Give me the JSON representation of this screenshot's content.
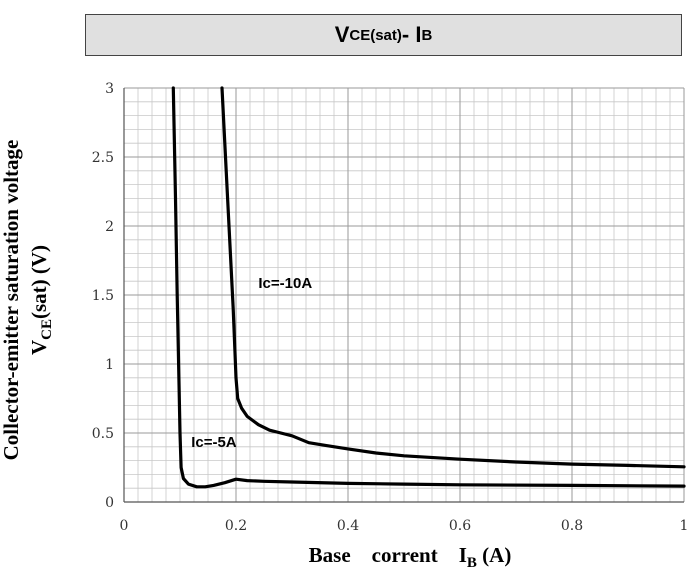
{
  "chart_data": {
    "type": "line",
    "title": {
      "main": "V",
      "sub1": "CE(sat)",
      "mid": "- I",
      "sub2": "B"
    },
    "ylabel": {
      "line1": "Collector-emitter saturation voltage",
      "line2_main": "V",
      "line2_sub": "CE",
      "line2_rest": "(sat) (V)"
    },
    "xlabel": {
      "main": "Base    corrent    I",
      "sub": "B",
      "rest": " (A)"
    },
    "xlim": [
      0,
      1
    ],
    "ylim": [
      0,
      3
    ],
    "x_ticks": [
      0,
      0.2,
      0.4,
      0.6,
      0.8,
      1
    ],
    "x_tick_labels": [
      "0",
      "0.2",
      "0.4",
      "0.6",
      "0.8",
      "1"
    ],
    "y_ticks": [
      0,
      0.5,
      1,
      1.5,
      2,
      2.5,
      3
    ],
    "y_tick_labels": [
      "0",
      "0.5",
      "1",
      "1.5",
      "2",
      "2.5",
      "3"
    ],
    "grid": true,
    "series": [
      {
        "name": "Ic=-10A",
        "color": "#000000",
        "points": [
          [
            0.175,
            3.0
          ],
          [
            0.185,
            2.2
          ],
          [
            0.19,
            1.8
          ],
          [
            0.195,
            1.4
          ],
          [
            0.198,
            1.1
          ],
          [
            0.2,
            0.9
          ],
          [
            0.203,
            0.75
          ],
          [
            0.21,
            0.68
          ],
          [
            0.22,
            0.62
          ],
          [
            0.24,
            0.56
          ],
          [
            0.26,
            0.52
          ],
          [
            0.28,
            0.5
          ],
          [
            0.3,
            0.48
          ],
          [
            0.33,
            0.43
          ],
          [
            0.36,
            0.41
          ],
          [
            0.4,
            0.385
          ],
          [
            0.45,
            0.355
          ],
          [
            0.5,
            0.335
          ],
          [
            0.6,
            0.31
          ],
          [
            0.7,
            0.29
          ],
          [
            0.8,
            0.275
          ],
          [
            0.9,
            0.265
          ],
          [
            1.0,
            0.255
          ]
        ]
      },
      {
        "name": "Ic=-5A",
        "color": "#000000",
        "points": [
          [
            0.088,
            3.0
          ],
          [
            0.092,
            2.2
          ],
          [
            0.095,
            1.5
          ],
          [
            0.098,
            0.9
          ],
          [
            0.1,
            0.5
          ],
          [
            0.102,
            0.25
          ],
          [
            0.106,
            0.17
          ],
          [
            0.115,
            0.13
          ],
          [
            0.13,
            0.11
          ],
          [
            0.145,
            0.11
          ],
          [
            0.16,
            0.12
          ],
          [
            0.18,
            0.14
          ],
          [
            0.2,
            0.165
          ],
          [
            0.22,
            0.155
          ],
          [
            0.25,
            0.15
          ],
          [
            0.3,
            0.145
          ],
          [
            0.4,
            0.135
          ],
          [
            0.5,
            0.13
          ],
          [
            0.6,
            0.125
          ],
          [
            0.8,
            0.12
          ],
          [
            1.0,
            0.115
          ]
        ]
      }
    ],
    "annotations": [
      {
        "text": "Ic=-10A",
        "x": 0.24,
        "y": 1.55
      },
      {
        "text": "Ic=-5A",
        "x": 0.12,
        "y": 0.4
      }
    ]
  }
}
